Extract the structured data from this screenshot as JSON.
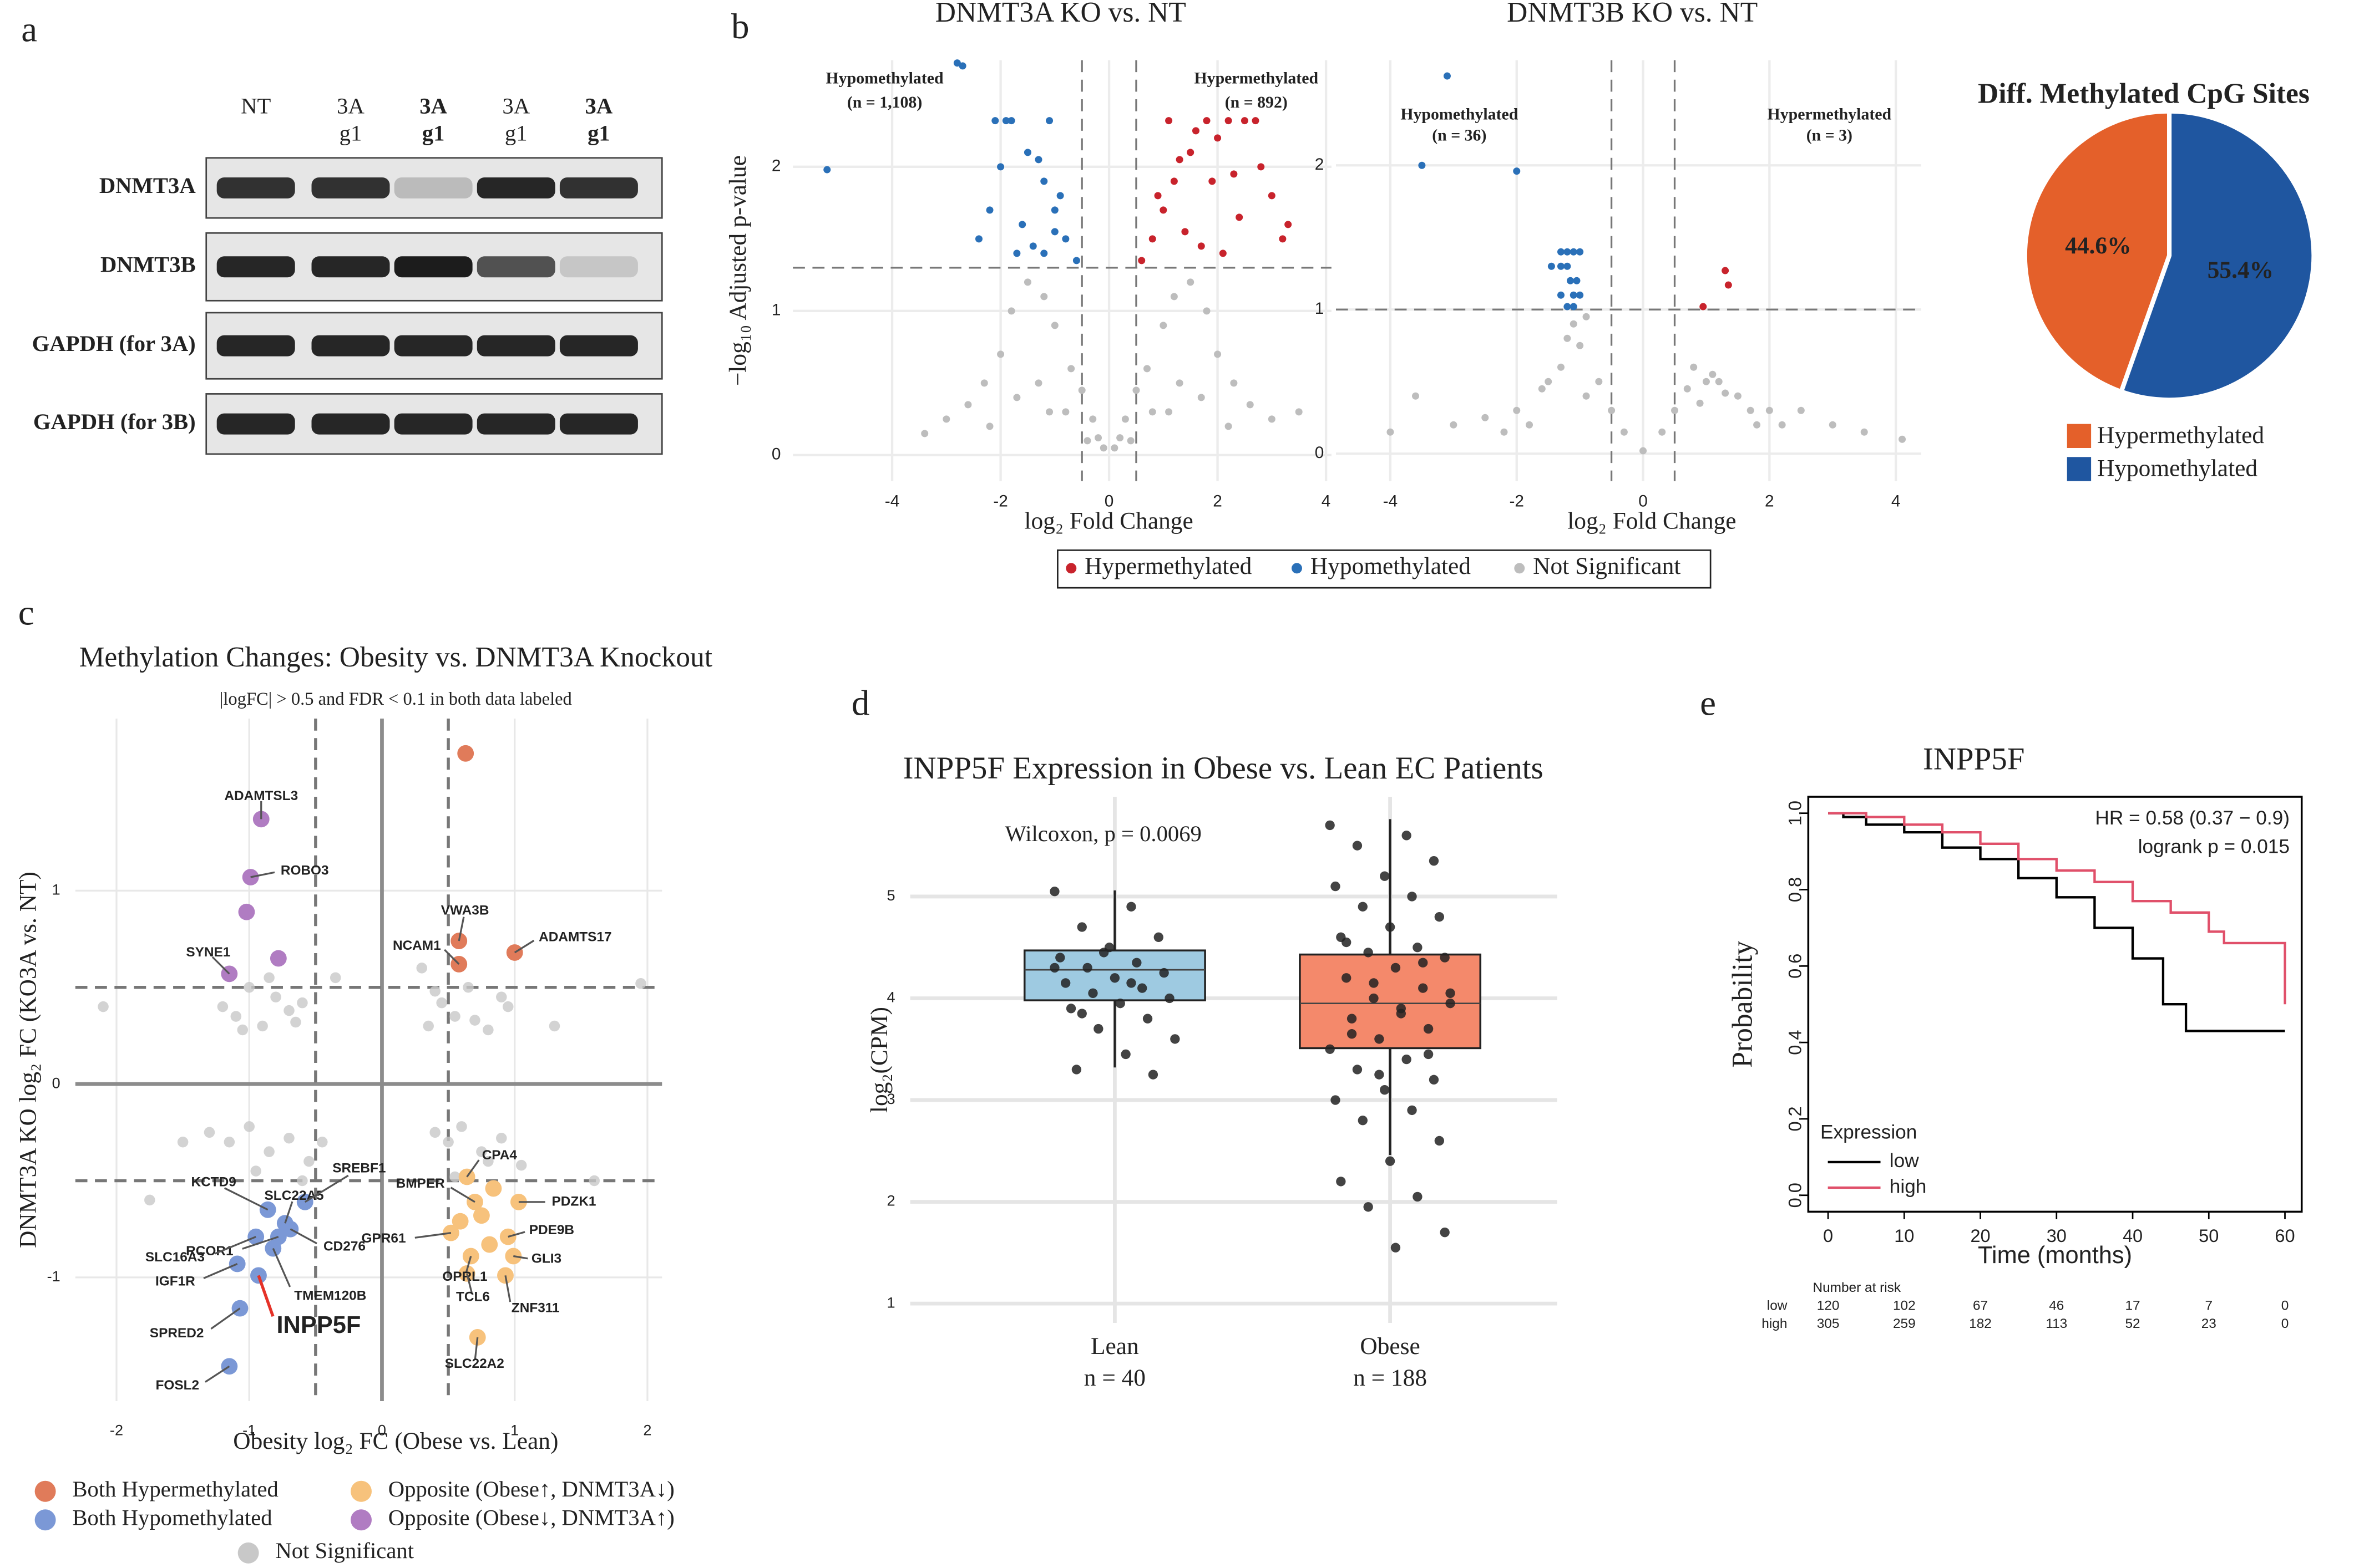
{
  "panel_labels": [
    "a",
    "b",
    "c",
    "d",
    "e"
  ],
  "western_blot": {
    "lanes": [
      [
        "NT"
      ],
      [
        "3A",
        "g1"
      ],
      [
        "3A",
        "g1"
      ],
      [
        "3A",
        "g1"
      ],
      [
        "3A",
        "g1"
      ]
    ],
    "lane_colors": [
      "#222222",
      "#222222",
      "#e0392d",
      "#222222",
      "#e0392d"
    ],
    "lane_bold": [
      false,
      false,
      true,
      false,
      true
    ],
    "rows": [
      "DNMT3A",
      "DNMT3B",
      "GAPDH (for 3A)",
      "GAPDH (for 3B)"
    ]
  },
  "chart_data": [
    {
      "type": "scatter",
      "title": "DNMT3A KO vs. NT",
      "x_label": "log₂ Fold Change",
      "y_label": "−log₁₀ Adjusted p-value",
      "xlim": [
        -5.83,
        4.1
      ],
      "ylim": [
        -0.18,
        2.74
      ],
      "xticks": [
        -4,
        -2,
        0,
        2,
        4
      ],
      "yticks": [
        0,
        1,
        2
      ],
      "grid": true,
      "thresholds": {
        "x": [
          -0.5,
          0.5
        ],
        "y": [
          1.3
        ]
      },
      "annotations": [
        "Hypomethylated",
        "(n = 1,108)",
        "Hypermethylated",
        "(n = 892)"
      ],
      "annotation_colors": [
        "#2b6cb0",
        "#2b6cb0",
        "#c62828",
        "#c62828"
      ],
      "series": [
        {
          "name": "Hypermethylated",
          "color": "#c8232c",
          "x": [
            0.6,
            0.8,
            1.0,
            1.2,
            1.5,
            1.8,
            2.0,
            2.2,
            2.5,
            2.8,
            3.0,
            3.3,
            1.1,
            1.4,
            1.7,
            2.1,
            2.4,
            0.9,
            1.3,
            1.6,
            2.7,
            3.2,
            1.9,
            2.3
          ],
          "y": [
            1.35,
            1.5,
            1.7,
            1.9,
            2.1,
            2.32,
            2.2,
            2.32,
            2.32,
            2.0,
            1.8,
            1.6,
            2.32,
            1.55,
            1.45,
            1.4,
            1.65,
            1.8,
            2.05,
            2.25,
            2.32,
            1.5,
            1.9,
            1.95
          ]
        },
        {
          "name": "Hypomethylated",
          "color": "#2a70b8",
          "x": [
            -0.6,
            -0.8,
            -1.0,
            -1.2,
            -1.5,
            -1.8,
            -2.0,
            -2.2,
            -2.4,
            -1.1,
            -1.4,
            -1.7,
            -0.9,
            -1.3,
            -1.6,
            -1.9,
            -2.1,
            -2.7,
            -2.8,
            -5.2,
            -1.0,
            -1.2
          ],
          "y": [
            1.35,
            1.5,
            1.7,
            1.9,
            2.1,
            2.32,
            2.0,
            1.7,
            1.5,
            2.32,
            1.45,
            1.4,
            1.8,
            2.05,
            1.6,
            2.32,
            2.32,
            2.7,
            2.72,
            1.98,
            1.55,
            1.4
          ]
        },
        {
          "name": "Not Significant",
          "color": "#bdbdbd",
          "x": [
            -0.1,
            0.1,
            -0.3,
            0.3,
            -0.5,
            0.5,
            -0.7,
            0.7,
            -1.0,
            1.0,
            -1.2,
            1.2,
            -1.5,
            1.5,
            -1.8,
            1.8,
            -2.0,
            2.0,
            -2.3,
            2.3,
            -2.6,
            2.6,
            -3.0,
            3.0,
            -0.4,
            0.4,
            -0.8,
            0.8,
            -1.3,
            1.3,
            -1.7,
            1.7,
            -2.2,
            2.2,
            -3.4,
            3.5,
            -0.2,
            0.2,
            -1.1,
            1.1
          ],
          "y": [
            0.05,
            0.05,
            0.25,
            0.25,
            0.45,
            0.45,
            0.6,
            0.6,
            0.9,
            0.9,
            1.1,
            1.1,
            1.2,
            1.2,
            1.0,
            1.0,
            0.7,
            0.7,
            0.5,
            0.5,
            0.35,
            0.35,
            0.25,
            0.25,
            0.1,
            0.1,
            0.3,
            0.3,
            0.5,
            0.5,
            0.4,
            0.4,
            0.2,
            0.2,
            0.15,
            0.3,
            0.12,
            0.12,
            0.3,
            0.3
          ]
        }
      ]
    },
    {
      "type": "scatter",
      "title": "DNMT3B KO vs. NT",
      "x_label": "log₂ Fold Change",
      "xlim": [
        -4.86,
        4.4
      ],
      "ylim": [
        -0.19,
        2.73
      ],
      "xticks": [
        -4,
        -2,
        0,
        2,
        4
      ],
      "yticks": [
        0,
        1,
        2
      ],
      "grid": true,
      "thresholds": {
        "x": [
          -0.5,
          0.5
        ],
        "y": [
          1
        ]
      },
      "annotations": [
        "Hypomethylated",
        "(n = 36)",
        "Hypermethylated",
        "(n = 3)"
      ],
      "annotation_colors": [
        "#2b6cb0",
        "#2b6cb0",
        "#c62828",
        "#c62828"
      ],
      "series": [
        {
          "name": "Hypermethylated",
          "color": "#c8232c",
          "x": [
            0.95,
            1.3,
            1.35
          ],
          "y": [
            1.02,
            1.27,
            1.17
          ]
        },
        {
          "name": "Hypomethylated",
          "color": "#2a70b8",
          "x": [
            -3.1,
            -3.5,
            -2.0,
            -1.3,
            -1.2,
            -1.1,
            -1.0,
            -1.45,
            -1.3,
            -1.2,
            -1.15,
            -1.05,
            -1.3,
            -1.1,
            -1.0,
            -1.2,
            -1.1
          ],
          "y": [
            2.62,
            2.0,
            1.96,
            1.4,
            1.4,
            1.4,
            1.4,
            1.3,
            1.3,
            1.3,
            1.2,
            1.2,
            1.1,
            1.1,
            1.1,
            1.02,
            1.02
          ]
        },
        {
          "name": "Not Significant",
          "color": "#bdbdbd",
          "x": [
            -4.0,
            -3.6,
            -3.0,
            -2.5,
            -2.0,
            -1.5,
            -1.2,
            -1.0,
            -0.7,
            -0.5,
            -0.3,
            0,
            0.3,
            0.5,
            0.7,
            1.0,
            1.2,
            1.5,
            2.0,
            2.5,
            3.0,
            3.5,
            4.1,
            -1.3,
            -1.1,
            -0.9,
            -1.6,
            0.9,
            1.1,
            1.3,
            1.7,
            -2.2,
            2.2,
            -1.8,
            1.8,
            -0.9,
            0.8
          ],
          "y": [
            0.15,
            0.4,
            0.2,
            0.25,
            0.3,
            0.5,
            0.8,
            0.75,
            0.5,
            0.3,
            0.15,
            0.02,
            0.15,
            0.3,
            0.45,
            0.5,
            0.5,
            0.4,
            0.3,
            0.3,
            0.2,
            0.15,
            0.1,
            0.6,
            0.9,
            0.4,
            0.45,
            0.35,
            0.55,
            0.42,
            0.3,
            0.15,
            0.2,
            0.2,
            0.2,
            0.95,
            0.6
          ]
        }
      ]
    },
    {
      "type": "pie",
      "title": "Diff. Methylated CpG Sites",
      "categories": [
        "Hypermethylated",
        "Hypomethylated"
      ],
      "values": [
        44.6,
        55.4
      ],
      "value_labels": [
        "44.6%",
        "55.4%"
      ],
      "colors": [
        "#e4602a",
        "#1f56a0"
      ]
    },
    {
      "type": "scatter",
      "title": "Methylation Changes: Obesity vs. DNMT3A Knockout",
      "subtitle": "|logFC| > 0.5 and FDR < 0.1 in both data labeled",
      "x_label": "Obesity log₂ FC (Obese vs. Lean)",
      "y_label": "DNMT3A KO log₂ FC (KO3A vs. NT)",
      "xlim": [
        -2.31,
        2.11
      ],
      "ylim": [
        -1.64,
        1.89
      ],
      "xticks": [
        -2,
        -1,
        0,
        1,
        2
      ],
      "yticks": [
        -1,
        0,
        1
      ],
      "grid": true,
      "thresholds": {
        "x": [
          -0.5,
          0.5
        ],
        "y": [
          -0.5,
          0.5
        ]
      },
      "zero_lines": true,
      "series": [
        {
          "name": "Both Hypermethylated",
          "color": "#e07b5a",
          "x": [
            0.58,
            0.58,
            1.0,
            0.63
          ],
          "y": [
            0.62,
            0.74,
            0.68,
            1.71
          ],
          "point_labels": [
            "NCAM1",
            "VWA3B",
            "ADAMTS17",
            null
          ]
        },
        {
          "name": "Both Hypomethylated",
          "color": "#7b98d6",
          "x": [
            -0.86,
            -0.73,
            -0.58,
            -0.78,
            -0.69,
            -0.82,
            -0.95,
            -1.09,
            -1.07,
            -0.93,
            -1.15
          ],
          "y": [
            -0.65,
            -0.72,
            -0.61,
            -0.79,
            -0.75,
            -0.85,
            -0.79,
            -0.93,
            -1.16,
            -0.99,
            -1.46
          ],
          "point_labels": [
            "KCTD9",
            "SLC22A5",
            "SREBF1",
            "RCOR1",
            "CD276",
            "TMEM120B",
            "SLC16A3",
            "IGF1R",
            "SPRED2",
            "INPP5F",
            "FOSL2"
          ],
          "label_colors": [
            null,
            null,
            null,
            null,
            null,
            null,
            null,
            null,
            null,
            "#e53228",
            null
          ]
        },
        {
          "name": "Opposite (Obese↑, DNMT3A↓)",
          "color": "#f7c27c",
          "x": [
            0.64,
            1.03,
            0.7,
            0.95,
            0.52,
            0.67,
            0.99,
            0.64,
            0.93,
            0.72,
            0.75,
            0.84,
            0.59,
            0.81
          ],
          "y": [
            -0.48,
            -0.61,
            -0.61,
            -0.79,
            -0.77,
            -0.89,
            -0.89,
            -0.98,
            -0.99,
            -1.31,
            -0.68,
            -0.54,
            -0.71,
            -0.83
          ],
          "point_labels": [
            "CPA4",
            "PDZK1",
            "BMPER",
            "PDE9B",
            "GPR61",
            "OPRL1",
            "GLI3",
            "TCL6",
            "ZNF311",
            "SLC22A2",
            null,
            null,
            null,
            null
          ]
        },
        {
          "name": "Opposite (Obese↓, DNMT3A↑)",
          "color": "#b07cc2",
          "x": [
            -0.91,
            -0.99,
            -1.02,
            -1.15,
            -0.78
          ],
          "y": [
            1.37,
            1.07,
            0.89,
            0.57,
            0.65
          ],
          "point_labels": [
            "ADAMTSL3",
            "ROBO3",
            null,
            "SYNE1",
            null
          ]
        },
        {
          "name": "Not Significant",
          "color": "#c8c8c8",
          "x": [
            -1.2,
            -1.1,
            -1.0,
            -0.9,
            -0.8,
            -0.7,
            -0.6,
            -1.05,
            -0.85,
            -0.65,
            0.35,
            0.45,
            0.55,
            0.65,
            0.8,
            0.95,
            0.4,
            0.7,
            0.9,
            -1.3,
            -1.15,
            -1.0,
            -0.85,
            -0.7,
            -0.55,
            -0.45,
            -0.95,
            -0.6,
            0.4,
            0.5,
            0.6,
            0.75,
            0.9,
            1.05,
            0.55,
            0.8,
            -2.1,
            -1.75,
            1.6,
            1.95,
            -0.35,
            0.3,
            -1.5,
            1.3
          ],
          "y": [
            0.4,
            0.35,
            0.5,
            0.3,
            0.45,
            0.38,
            0.42,
            0.28,
            0.55,
            0.32,
            0.3,
            0.42,
            0.35,
            0.5,
            0.28,
            0.4,
            0.48,
            0.33,
            0.45,
            -0.25,
            -0.3,
            -0.22,
            -0.35,
            -0.28,
            -0.4,
            -0.3,
            -0.45,
            -0.5,
            -0.25,
            -0.3,
            -0.22,
            -0.35,
            -0.28,
            -0.42,
            -0.48,
            -0.4,
            0.4,
            -0.6,
            -0.5,
            0.52,
            0.55,
            0.6,
            -0.3,
            0.3
          ]
        }
      ]
    },
    {
      "type": "box",
      "title": "INPP5F Expression in Obese vs. Lean EC Patients",
      "annotation": "Wilcoxon, p = 0.0069",
      "y_label": "log₂(CPM)",
      "categories": [
        "Lean",
        "Obese"
      ],
      "n_labels": [
        "n = 40",
        "n = 188"
      ],
      "ylim": [
        0.81,
        5.98
      ],
      "yticks": [
        1,
        2,
        3,
        4,
        5
      ],
      "grid": true,
      "colors": [
        "#9ecae1",
        "#f4896b"
      ],
      "q1": [
        3.98,
        3.51
      ],
      "median": [
        4.28,
        3.95
      ],
      "q3": [
        4.47,
        4.43
      ],
      "whisker_low": [
        3.32,
        2.46
      ],
      "whisker_high": [
        5.06,
        5.76
      ],
      "points": [
        [
          5.05,
          4.9,
          4.7,
          4.6,
          4.5,
          4.4,
          4.35,
          4.3,
          4.25,
          4.2,
          4.15,
          4.1,
          4.05,
          4.0,
          3.95,
          3.9,
          3.8,
          3.7,
          3.6,
          3.45,
          3.3,
          3.25,
          4.45,
          4.3,
          4.15,
          3.85
        ],
        [
          5.7,
          5.6,
          5.5,
          5.35,
          5.2,
          5.1,
          5.0,
          4.9,
          4.8,
          4.7,
          4.6,
          4.5,
          4.45,
          4.4,
          4.3,
          4.2,
          4.1,
          4.0,
          3.95,
          3.9,
          3.8,
          3.7,
          3.6,
          3.5,
          3.4,
          3.3,
          3.2,
          3.1,
          3.0,
          2.9,
          2.8,
          2.6,
          2.4,
          2.2,
          2.05,
          1.95,
          1.7,
          1.55,
          4.55,
          4.35,
          4.15,
          4.05,
          3.85,
          3.65,
          3.45,
          3.25
        ]
      ]
    },
    {
      "type": "line",
      "drawstyle": "steps-post",
      "title": "INPP5F",
      "x_label": "Time (months)",
      "y_label": "Probability",
      "annotations": [
        "HR = 0.58 (0.37 − 0.9)",
        "logrank p = 0.015"
      ],
      "xlim": [
        -2.6,
        62.2
      ],
      "ylim": [
        -0.043,
        1.043
      ],
      "xticks": [
        0,
        10,
        20,
        30,
        40,
        50,
        60
      ],
      "yticks": [
        {
          "value": 0,
          "label": "0.0"
        },
        0.2,
        0.4,
        0.6,
        0.8,
        {
          "value": 1,
          "label": "1.0"
        }
      ],
      "legend_title": "Expression",
      "series": [
        {
          "name": "low",
          "color": "#000000",
          "x": [
            0,
            2,
            5,
            10,
            15,
            20,
            25,
            30,
            35,
            40,
            44,
            47,
            60
          ],
          "y": [
            1,
            0.99,
            0.97,
            0.95,
            0.91,
            0.88,
            0.83,
            0.78,
            0.7,
            0.62,
            0.5,
            0.43,
            0.43
          ]
        },
        {
          "name": "high",
          "color": "#e0506a",
          "x": [
            0,
            5,
            10,
            15,
            20,
            25,
            30,
            35,
            40,
            45,
            50,
            52,
            60
          ],
          "y": [
            1,
            0.99,
            0.97,
            0.95,
            0.92,
            0.88,
            0.85,
            0.82,
            0.77,
            0.74,
            0.69,
            0.66,
            0.5
          ]
        }
      ],
      "risk_table": {
        "title": "Number at risk",
        "rows": [
          {
            "name": "low",
            "values": [
              120,
              102,
              67,
              46,
              17,
              7,
              0
            ]
          },
          {
            "name": "high",
            "values": [
              305,
              259,
              182,
              113,
              52,
              23,
              0
            ]
          }
        ]
      }
    }
  ]
}
